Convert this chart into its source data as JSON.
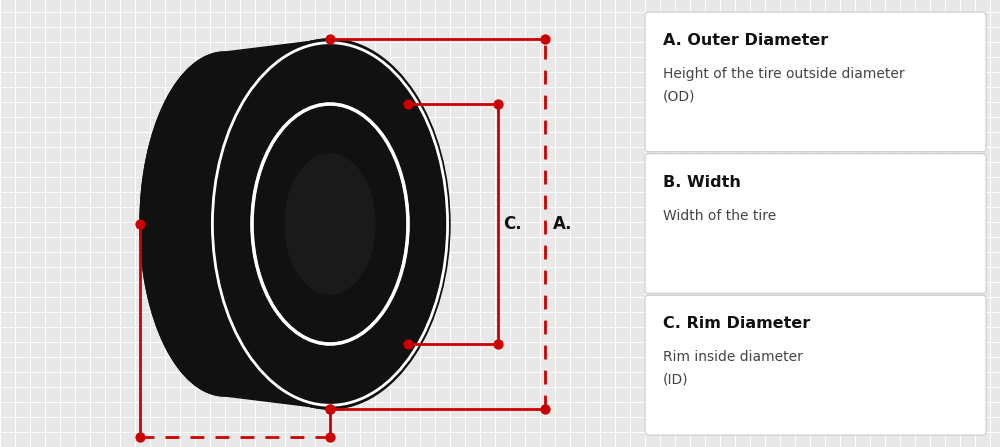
{
  "bg_color": "#e8e8e8",
  "grid_color": "#ffffff",
  "tire_color": "#111111",
  "tire_dark": "#0a0a0a",
  "red_color": "#cc0000",
  "white_color": "#ffffff",
  "panel_bg": "#ffffff",
  "panel_border": "#cccccc",
  "text_dark": "#111111",
  "text_gray": "#444444",
  "figsize": [
    10.0,
    4.47
  ],
  "dpi": 100,
  "labels_info": [
    {
      "title": "A. Outer Diameter",
      "desc1": "Height of the tire outside diameter",
      "desc2": "(OD)"
    },
    {
      "title": "B. Width",
      "desc1": "Width of the tire",
      "desc2": ""
    },
    {
      "title": "C. Rim Diameter",
      "desc1": "Rim inside diameter",
      "desc2": "(ID)"
    }
  ]
}
